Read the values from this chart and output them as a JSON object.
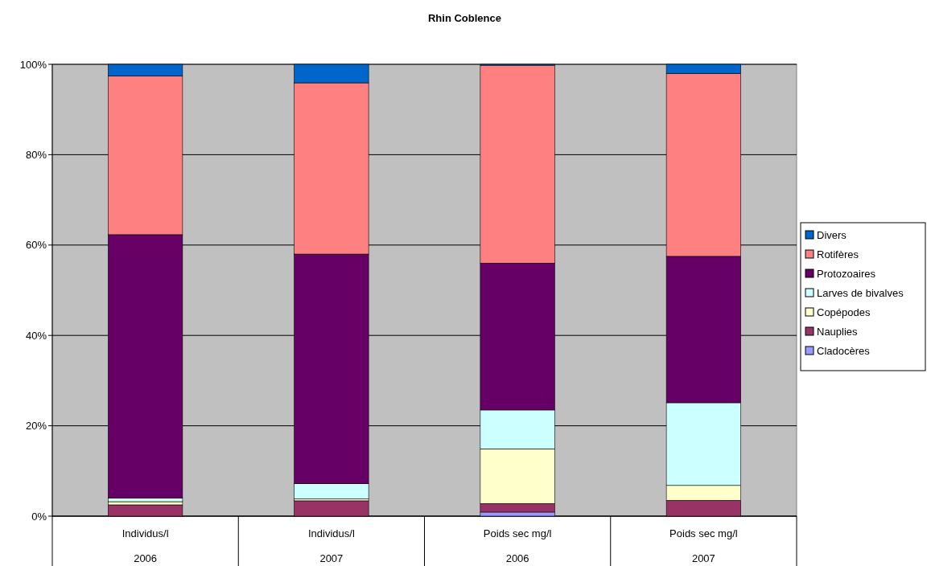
{
  "chart_data": {
    "type": "bar",
    "stacked": true,
    "title": "Rhin  Coblence",
    "categories": [
      "Individus/l\n2006",
      "Individus/l\n2007",
      "Poids sec mg/l\n2006",
      "Poids sec mg/l\n2007"
    ],
    "series": [
      {
        "name": "Cladocères",
        "color": "#9999ff",
        "values": [
          0,
          0,
          0.9,
          0
        ]
      },
      {
        "name": "Nauplies",
        "color": "#993366",
        "values": [
          2.5,
          3.4,
          1.9,
          3.5
        ]
      },
      {
        "name": "Copépodes",
        "color": "#ffffcc",
        "values": [
          0.7,
          0.4,
          12.1,
          3.3
        ]
      },
      {
        "name": "Larves de bivalves",
        "color": "#ccffff",
        "values": [
          0.8,
          3.4,
          8.6,
          18.3
        ]
      },
      {
        "name": "Protozoaires",
        "color": "#660066",
        "values": [
          58.3,
          50.8,
          32.5,
          32.4
        ]
      },
      {
        "name": "Rotifères",
        "color": "#ff8080",
        "values": [
          35.1,
          37.9,
          43.8,
          40.5
        ]
      },
      {
        "name": "Divers",
        "color": "#0066cc",
        "values": [
          2.6,
          4.1,
          0.2,
          2.0
        ]
      }
    ],
    "ylim": [
      0,
      100
    ],
    "yticks": [
      {
        "value": 0,
        "label": "0%"
      },
      {
        "value": 20,
        "label": "20%"
      },
      {
        "value": 40,
        "label": "40%"
      },
      {
        "value": 60,
        "label": "60%"
      },
      {
        "value": 80,
        "label": "80%"
      },
      {
        "value": 100,
        "label": "100%"
      }
    ],
    "grid": "y",
    "legend": "right"
  }
}
